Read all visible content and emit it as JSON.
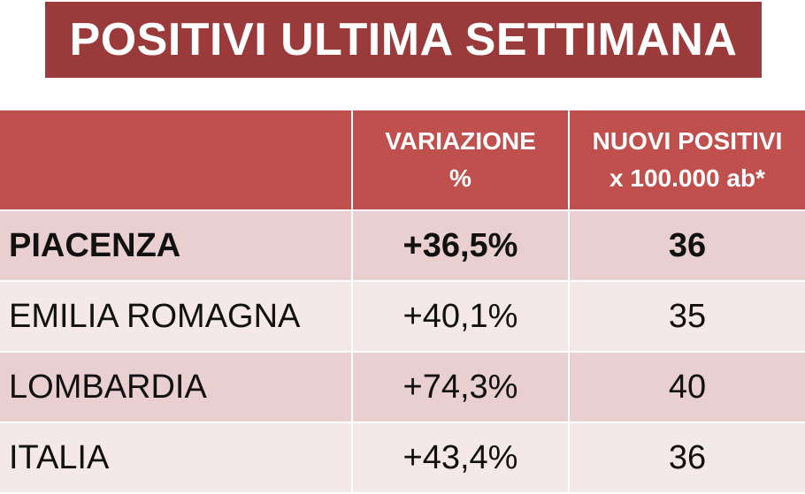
{
  "title": "POSITIVI ULTIMA SETTIMANA",
  "colors": {
    "title_bg": "#9b3a3a",
    "header_bg": "#c0504d",
    "row_dark": "#e9cfcf",
    "row_light": "#f4e8e8"
  },
  "table": {
    "headers": {
      "name": "",
      "variation_line1": "VARIAZIONE",
      "variation_line2": "%",
      "new_line1": "NUOVI POSITIVI",
      "new_line2": "x 100.000 ab*"
    },
    "rows": [
      {
        "name": "PIACENZA",
        "variation": "+36,5%",
        "new_positives": "36",
        "bold": true
      },
      {
        "name": "EMILIA ROMAGNA",
        "variation": "+40,1%",
        "new_positives": "35",
        "bold": false
      },
      {
        "name": "LOMBARDIA",
        "variation": "+74,3%",
        "new_positives": "40",
        "bold": false
      },
      {
        "name": "ITALIA",
        "variation": "+43,4%",
        "new_positives": "36",
        "bold": false
      }
    ]
  }
}
